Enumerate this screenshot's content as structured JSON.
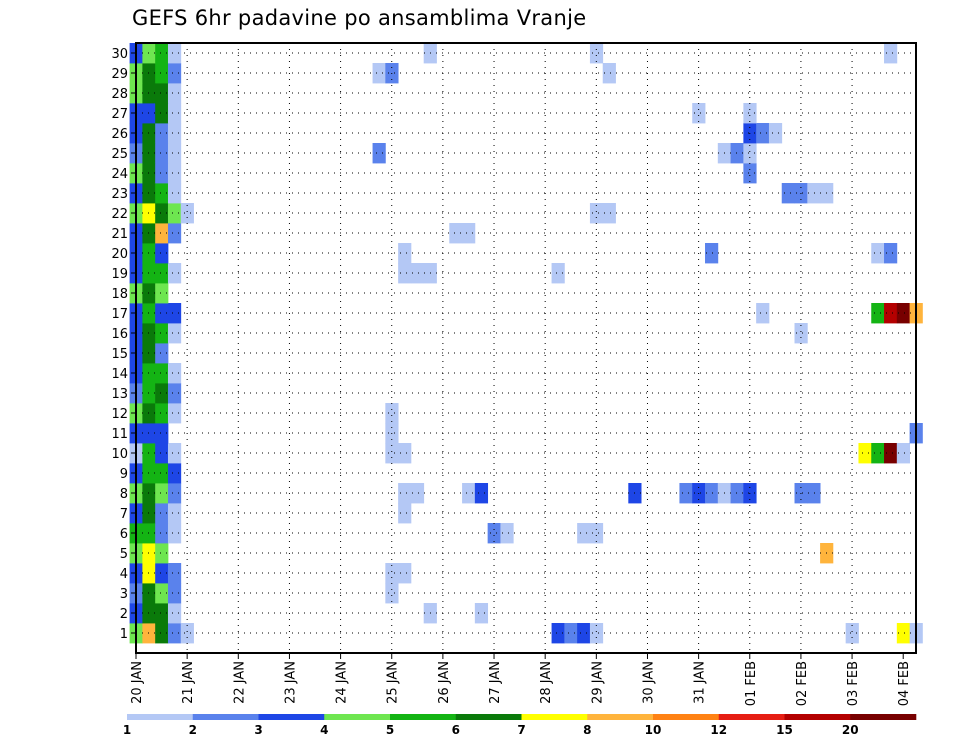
{
  "chart_data": {
    "type": "heatmap",
    "title": "GEFS 6hr padavine po ansamblima Vranje",
    "x_tick_labels": [
      "20 JAN",
      "21 JAN",
      "22 JAN",
      "23 JAN",
      "24 JAN",
      "25 JAN",
      "26 JAN",
      "27 JAN",
      "28 JAN",
      "29 JAN",
      "30 JAN",
      "31 JAN",
      "01 FEB",
      "02 FEB",
      "03 FEB",
      "04 FEB"
    ],
    "y_tick_labels": [
      "1",
      "2",
      "3",
      "4",
      "5",
      "6",
      "7",
      "8",
      "9",
      "10",
      "11",
      "12",
      "13",
      "14",
      "15",
      "16",
      "17",
      "18",
      "19",
      "20",
      "21",
      "22",
      "23",
      "24",
      "25",
      "26",
      "27",
      "28",
      "29",
      "30"
    ],
    "x_range_steps": [
      0,
      61
    ],
    "y_range_members": [
      0,
      30
    ],
    "grid": true,
    "legend_placement": "bottom",
    "colorbar": {
      "labels": [
        "1",
        "2",
        "3",
        "4",
        "5",
        "6",
        "7",
        "8",
        "10",
        "12",
        "15",
        "20"
      ],
      "colors": [
        "#b4c8f5",
        "#5a82ec",
        "#1e46e6",
        "#6ee650",
        "#14b414",
        "#0a7a0a",
        "#ffff00",
        "#ffb43c",
        "#ff8214",
        "#e61e14",
        "#b40000",
        "#780000"
      ]
    },
    "members": [
      {
        "m": 1,
        "c": [
          [
            0,
            3
          ],
          [
            1,
            7
          ],
          [
            2,
            5
          ],
          [
            3,
            1
          ],
          [
            4,
            0
          ],
          [
            33,
            2
          ],
          [
            34,
            1
          ],
          [
            35,
            2
          ],
          [
            36,
            0
          ],
          [
            56,
            0
          ],
          [
            60,
            6
          ],
          [
            61,
            0
          ]
        ]
      },
      {
        "m": 2,
        "c": [
          [
            0,
            2
          ],
          [
            1,
            5
          ],
          [
            2,
            5
          ],
          [
            3,
            0
          ],
          [
            23,
            0
          ],
          [
            27,
            0
          ]
        ]
      },
      {
        "m": 3,
        "c": [
          [
            0,
            1
          ],
          [
            1,
            5
          ],
          [
            2,
            3
          ],
          [
            3,
            1
          ],
          [
            20,
            0
          ]
        ]
      },
      {
        "m": 4,
        "c": [
          [
            0,
            2
          ],
          [
            1,
            6
          ],
          [
            2,
            2
          ],
          [
            3,
            1
          ],
          [
            20,
            0
          ],
          [
            21,
            0
          ]
        ]
      },
      {
        "m": 5,
        "c": [
          [
            0,
            3
          ],
          [
            1,
            6
          ],
          [
            2,
            3
          ],
          [
            54,
            7
          ]
        ]
      },
      {
        "m": 6,
        "c": [
          [
            0,
            4
          ],
          [
            1,
            4
          ],
          [
            2,
            1
          ],
          [
            3,
            0
          ],
          [
            28,
            1
          ],
          [
            29,
            0
          ],
          [
            35,
            0
          ],
          [
            36,
            0
          ]
        ]
      },
      {
        "m": 7,
        "c": [
          [
            0,
            2
          ],
          [
            1,
            5
          ],
          [
            2,
            1
          ],
          [
            3,
            0
          ],
          [
            21,
            0
          ]
        ]
      },
      {
        "m": 8,
        "c": [
          [
            0,
            3
          ],
          [
            1,
            5
          ],
          [
            2,
            3
          ],
          [
            3,
            1
          ],
          [
            21,
            0
          ],
          [
            22,
            0
          ],
          [
            26,
            0
          ],
          [
            27,
            2
          ],
          [
            39,
            2
          ],
          [
            43,
            1
          ],
          [
            44,
            2
          ],
          [
            45,
            1
          ],
          [
            46,
            0
          ],
          [
            47,
            1
          ],
          [
            48,
            2
          ],
          [
            52,
            1
          ],
          [
            53,
            1
          ]
        ]
      },
      {
        "m": 9,
        "c": [
          [
            0,
            2
          ],
          [
            1,
            4
          ],
          [
            2,
            4
          ],
          [
            3,
            2
          ]
        ]
      },
      {
        "m": 10,
        "c": [
          [
            0,
            0
          ],
          [
            1,
            4
          ],
          [
            2,
            2
          ],
          [
            3,
            0
          ],
          [
            20,
            0
          ],
          [
            21,
            0
          ],
          [
            57,
            6
          ],
          [
            58,
            4
          ],
          [
            59,
            11
          ],
          [
            60,
            0
          ]
        ]
      },
      {
        "m": 11,
        "c": [
          [
            0,
            2
          ],
          [
            1,
            2
          ],
          [
            2,
            2
          ],
          [
            20,
            0
          ],
          [
            61,
            1
          ]
        ]
      },
      {
        "m": 12,
        "c": [
          [
            0,
            3
          ],
          [
            1,
            5
          ],
          [
            2,
            4
          ],
          [
            3,
            0
          ],
          [
            20,
            0
          ]
        ]
      },
      {
        "m": 13,
        "c": [
          [
            0,
            1
          ],
          [
            1,
            4
          ],
          [
            2,
            5
          ],
          [
            3,
            1
          ]
        ]
      },
      {
        "m": 14,
        "c": [
          [
            0,
            2
          ],
          [
            1,
            4
          ],
          [
            2,
            4
          ],
          [
            3,
            0
          ]
        ]
      },
      {
        "m": 15,
        "c": [
          [
            0,
            2
          ],
          [
            1,
            5
          ],
          [
            2,
            1
          ]
        ]
      },
      {
        "m": 16,
        "c": [
          [
            0,
            2
          ],
          [
            1,
            5
          ],
          [
            2,
            4
          ],
          [
            3,
            0
          ],
          [
            52,
            0
          ]
        ]
      },
      {
        "m": 17,
        "c": [
          [
            0,
            2
          ],
          [
            1,
            4
          ],
          [
            2,
            2
          ],
          [
            3,
            2
          ],
          [
            49,
            0
          ],
          [
            58,
            4
          ],
          [
            59,
            10
          ],
          [
            60,
            11
          ],
          [
            61,
            7
          ]
        ]
      },
      {
        "m": 18,
        "c": [
          [
            0,
            3
          ],
          [
            1,
            5
          ],
          [
            2,
            3
          ]
        ]
      },
      {
        "m": 19,
        "c": [
          [
            0,
            2
          ],
          [
            1,
            4
          ],
          [
            2,
            4
          ],
          [
            3,
            0
          ],
          [
            21,
            0
          ],
          [
            22,
            0
          ],
          [
            23,
            0
          ],
          [
            33,
            0
          ]
        ]
      },
      {
        "m": 20,
        "c": [
          [
            0,
            2
          ],
          [
            1,
            4
          ],
          [
            2,
            2
          ],
          [
            21,
            0
          ],
          [
            45,
            1
          ],
          [
            58,
            0
          ],
          [
            59,
            1
          ]
        ]
      },
      {
        "m": 21,
        "c": [
          [
            0,
            2
          ],
          [
            1,
            5
          ],
          [
            2,
            7
          ],
          [
            3,
            1
          ],
          [
            25,
            0
          ],
          [
            26,
            0
          ]
        ]
      },
      {
        "m": 22,
        "c": [
          [
            0,
            3
          ],
          [
            1,
            6
          ],
          [
            2,
            5
          ],
          [
            3,
            3
          ],
          [
            4,
            0
          ],
          [
            36,
            0
          ],
          [
            37,
            0
          ]
        ]
      },
      {
        "m": 23,
        "c": [
          [
            0,
            2
          ],
          [
            1,
            5
          ],
          [
            2,
            4
          ],
          [
            3,
            0
          ],
          [
            51,
            1
          ],
          [
            52,
            1
          ],
          [
            53,
            0
          ],
          [
            54,
            0
          ]
        ]
      },
      {
        "m": 24,
        "c": [
          [
            0,
            3
          ],
          [
            1,
            5
          ],
          [
            2,
            1
          ],
          [
            3,
            0
          ],
          [
            48,
            1
          ]
        ]
      },
      {
        "m": 25,
        "c": [
          [
            0,
            1
          ],
          [
            1,
            5
          ],
          [
            2,
            1
          ],
          [
            3,
            0
          ],
          [
            19,
            1
          ],
          [
            46,
            0
          ],
          [
            47,
            1
          ],
          [
            48,
            0
          ]
        ]
      },
      {
        "m": 26,
        "c": [
          [
            0,
            2
          ],
          [
            1,
            5
          ],
          [
            2,
            1
          ],
          [
            3,
            0
          ],
          [
            48,
            2
          ],
          [
            49,
            1
          ],
          [
            50,
            0
          ]
        ]
      },
      {
        "m": 27,
        "c": [
          [
            0,
            2
          ],
          [
            1,
            2
          ],
          [
            2,
            5
          ],
          [
            3,
            0
          ],
          [
            44,
            0
          ],
          [
            48,
            0
          ]
        ]
      },
      {
        "m": 28,
        "c": [
          [
            0,
            3
          ],
          [
            1,
            5
          ],
          [
            2,
            5
          ],
          [
            3,
            0
          ]
        ]
      },
      {
        "m": 29,
        "c": [
          [
            0,
            3
          ],
          [
            1,
            5
          ],
          [
            2,
            4
          ],
          [
            3,
            1
          ],
          [
            19,
            0
          ],
          [
            20,
            1
          ],
          [
            37,
            0
          ]
        ]
      },
      {
        "m": 30,
        "c": [
          [
            0,
            2
          ],
          [
            1,
            3
          ],
          [
            2,
            4
          ],
          [
            3,
            0
          ],
          [
            23,
            0
          ],
          [
            36,
            0
          ],
          [
            59,
            0
          ]
        ]
      }
    ]
  }
}
